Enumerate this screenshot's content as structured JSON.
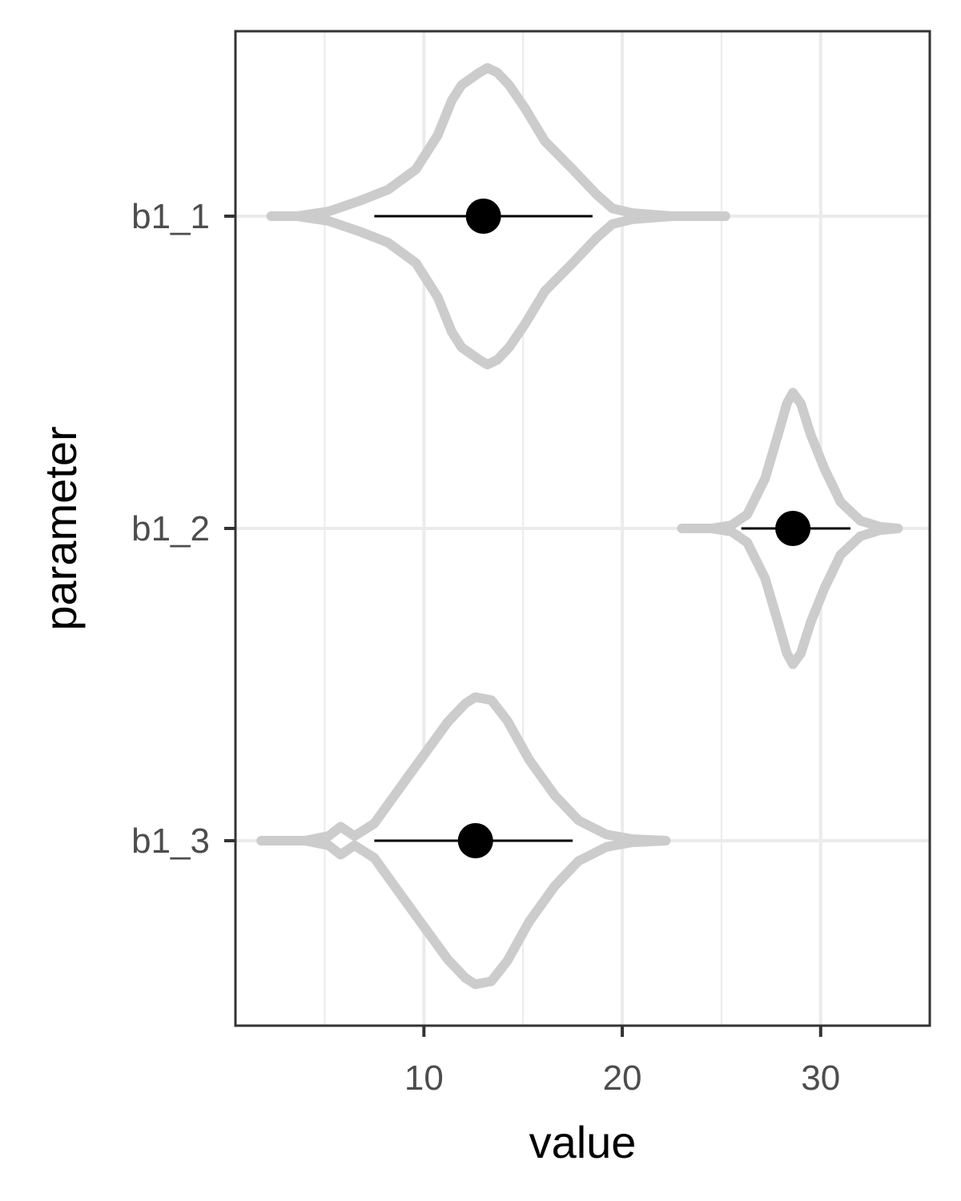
{
  "chart_data": {
    "type": "violin",
    "xlabel": "value",
    "ylabel": "parameter",
    "xlim": [
      0.5,
      35.5
    ],
    "x_ticks": [
      10,
      20,
      30
    ],
    "x_tick_labels": [
      "10",
      "20",
      "30"
    ],
    "x_minor_gridlines": [
      5,
      15,
      25
    ],
    "grid": true,
    "colors": {
      "violin": "#cccccc",
      "point": "#000000",
      "interval": "#000000",
      "grid": "#ebebeb",
      "border": "#333333"
    },
    "categories": [
      "b1_1",
      "b1_2",
      "b1_3"
    ],
    "series": [
      {
        "category": "b1_1",
        "point_estimate": 13.0,
        "interval": [
          7.5,
          18.5
        ],
        "density": [
          [
            2.3,
            0.0
          ],
          [
            3.6,
            0.0
          ],
          [
            5.2,
            0.03
          ],
          [
            6.8,
            0.1
          ],
          [
            8.2,
            0.17
          ],
          [
            9.6,
            0.3
          ],
          [
            10.7,
            0.52
          ],
          [
            11.4,
            0.74
          ],
          [
            11.9,
            0.84
          ],
          [
            12.8,
            0.92
          ],
          [
            13.2,
            0.95
          ],
          [
            13.7,
            0.92
          ],
          [
            14.3,
            0.84
          ],
          [
            15.1,
            0.69
          ],
          [
            16.1,
            0.48
          ],
          [
            17.5,
            0.3
          ],
          [
            18.7,
            0.14
          ],
          [
            19.5,
            0.05
          ],
          [
            20.5,
            0.02
          ],
          [
            22.5,
            0.0
          ],
          [
            25.2,
            0.0
          ]
        ]
      },
      {
        "category": "b1_2",
        "point_estimate": 28.6,
        "interval": [
          26.0,
          31.5
        ],
        "density": [
          [
            23.0,
            0.0
          ],
          [
            24.5,
            0.0
          ],
          [
            25.5,
            0.02
          ],
          [
            26.3,
            0.09
          ],
          [
            27.2,
            0.32
          ],
          [
            27.8,
            0.58
          ],
          [
            28.3,
            0.8
          ],
          [
            28.6,
            0.87
          ],
          [
            29.0,
            0.8
          ],
          [
            29.5,
            0.6
          ],
          [
            30.2,
            0.38
          ],
          [
            31.0,
            0.17
          ],
          [
            32.0,
            0.05
          ],
          [
            33.0,
            0.01
          ],
          [
            33.9,
            0.0
          ]
        ]
      },
      {
        "category": "b1_3",
        "point_estimate": 12.6,
        "interval": [
          7.5,
          17.5
        ],
        "density": [
          [
            1.8,
            0.0
          ],
          [
            4.0,
            0.0
          ],
          [
            5.2,
            0.03
          ],
          [
            5.8,
            0.09
          ],
          [
            6.5,
            0.03
          ],
          [
            7.5,
            0.11
          ],
          [
            8.8,
            0.34
          ],
          [
            10.0,
            0.55
          ],
          [
            11.2,
            0.76
          ],
          [
            12.1,
            0.88
          ],
          [
            12.6,
            0.92
          ],
          [
            13.4,
            0.9
          ],
          [
            14.2,
            0.77
          ],
          [
            15.3,
            0.52
          ],
          [
            16.6,
            0.29
          ],
          [
            17.8,
            0.13
          ],
          [
            19.2,
            0.04
          ],
          [
            20.5,
            0.01
          ],
          [
            22.2,
            0.0
          ]
        ]
      }
    ]
  }
}
